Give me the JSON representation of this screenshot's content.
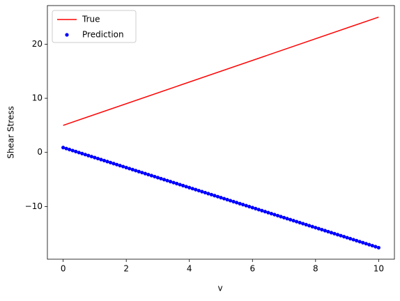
{
  "chart_data": {
    "type": "line",
    "xlabel": "v",
    "ylabel": "Shear Stress",
    "xlim": [
      -0.5,
      10.5
    ],
    "ylim": [
      -19.73,
      27.13
    ],
    "xticks": [
      0,
      2,
      4,
      6,
      8,
      10
    ],
    "yticks": [
      {
        "value": -10,
        "label": "−10"
      },
      0,
      10,
      20
    ],
    "legend": "upper left",
    "series": [
      {
        "name": "True",
        "color": "#ff0000",
        "style": "line",
        "x": [
          0,
          10
        ],
        "values": [
          5,
          25
        ]
      },
      {
        "name": "Prediction",
        "color": "#0000ff",
        "style": "dots",
        "x": [
          0,
          0.1,
          0.2,
          0.3,
          0.4,
          0.5,
          0.6,
          0.7,
          0.8,
          0.9,
          1,
          1.1,
          1.2,
          1.3,
          1.4,
          1.5,
          1.6,
          1.7,
          1.8,
          1.9,
          2,
          2.1,
          2.2,
          2.3,
          2.4,
          2.5,
          2.6,
          2.7,
          2.8,
          2.9,
          3,
          3.1,
          3.2,
          3.3,
          3.4,
          3.5,
          3.6,
          3.7,
          3.8,
          3.9,
          4,
          4.1,
          4.2,
          4.3,
          4.4,
          4.5,
          4.6,
          4.7,
          4.8,
          4.9,
          5,
          5.1,
          5.2,
          5.3,
          5.4,
          5.5,
          5.6,
          5.7,
          5.8,
          5.9,
          6,
          6.1,
          6.2,
          6.3,
          6.4,
          6.5,
          6.6,
          6.7,
          6.8,
          6.9,
          7,
          7.1,
          7.2,
          7.3,
          7.4,
          7.5,
          7.6,
          7.7,
          7.8,
          7.9,
          8,
          8.1,
          8.2,
          8.3,
          8.4,
          8.5,
          8.6,
          8.7,
          8.8,
          8.9,
          9,
          9.1,
          9.2,
          9.3,
          9.4,
          9.5,
          9.6,
          9.7,
          9.8,
          9.9,
          10
        ],
        "values": [
          0.9,
          0.715,
          0.53,
          0.345,
          0.16,
          -0.025,
          -0.21,
          -0.395,
          -0.58,
          -0.765,
          -0.95,
          -1.135,
          -1.32,
          -1.505,
          -1.69,
          -1.875,
          -2.06,
          -2.245,
          -2.43,
          -2.615,
          -2.8,
          -2.985,
          -3.17,
          -3.355,
          -3.54,
          -3.725,
          -3.91,
          -4.095,
          -4.28,
          -4.465,
          -4.65,
          -4.835,
          -5.02,
          -5.205,
          -5.39,
          -5.575,
          -5.76,
          -5.945,
          -6.13,
          -6.315,
          -6.5,
          -6.685,
          -6.87,
          -7.055,
          -7.24,
          -7.425,
          -7.61,
          -7.795,
          -7.98,
          -8.165,
          -8.35,
          -8.535,
          -8.72,
          -8.905,
          -9.09,
          -9.275,
          -9.46,
          -9.645,
          -9.83,
          -10.015,
          -10.2,
          -10.385,
          -10.57,
          -10.755,
          -10.94,
          -11.125,
          -11.31,
          -11.495,
          -11.68,
          -11.865,
          -12.05,
          -12.235,
          -12.42,
          -12.605,
          -12.79,
          -12.975,
          -13.16,
          -13.345,
          -13.53,
          -13.715,
          -13.9,
          -14.085,
          -14.27,
          -14.455,
          -14.64,
          -14.825,
          -15.01,
          -15.195,
          -15.38,
          -15.565,
          -15.75,
          -15.935,
          -16.12,
          -16.305,
          -16.49,
          -16.675,
          -16.86,
          -17.045,
          -17.23,
          -17.415,
          -17.6
        ]
      }
    ]
  }
}
